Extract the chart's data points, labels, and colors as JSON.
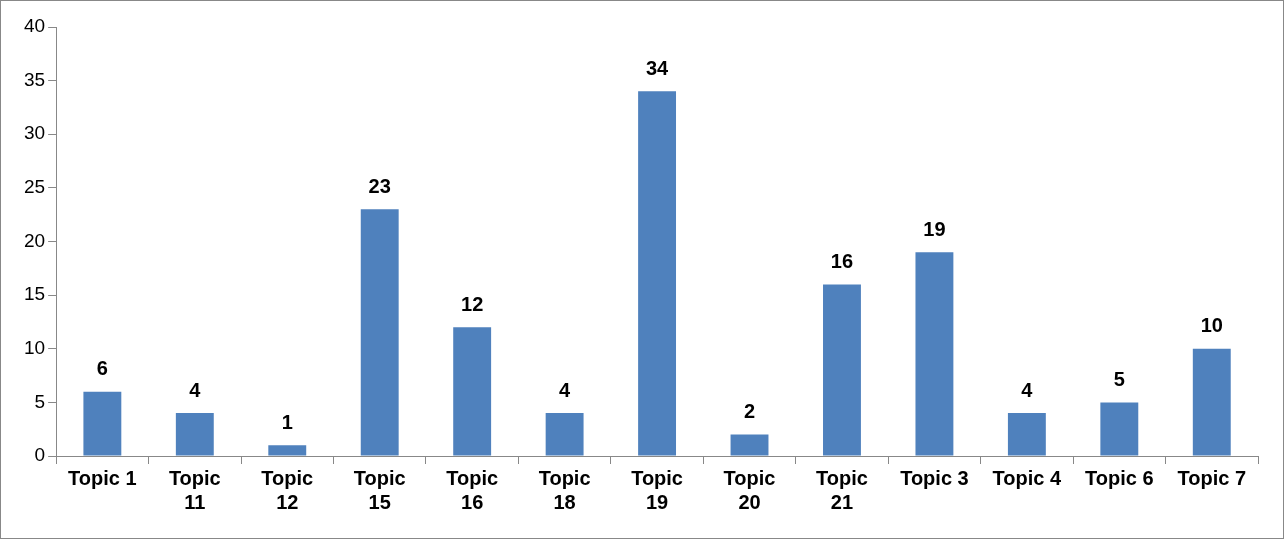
{
  "chart_data": {
    "type": "bar",
    "categories": [
      "Topic 1",
      "Topic 11",
      "Topic 12",
      "Topic 15",
      "Topic 16",
      "Topic 18",
      "Topic 19",
      "Topic 20",
      "Topic 21",
      "Topic 3",
      "Topic 4",
      "Topic 6",
      "Topic 7"
    ],
    "values": [
      6,
      4,
      1,
      23,
      12,
      4,
      34,
      2,
      16,
      19,
      4,
      5,
      10
    ],
    "color": "#4f81bd",
    "ylim": [
      0,
      40
    ],
    "yticks": [
      0,
      5,
      10,
      15,
      20,
      25,
      30,
      35,
      40
    ],
    "data_labels": true
  }
}
